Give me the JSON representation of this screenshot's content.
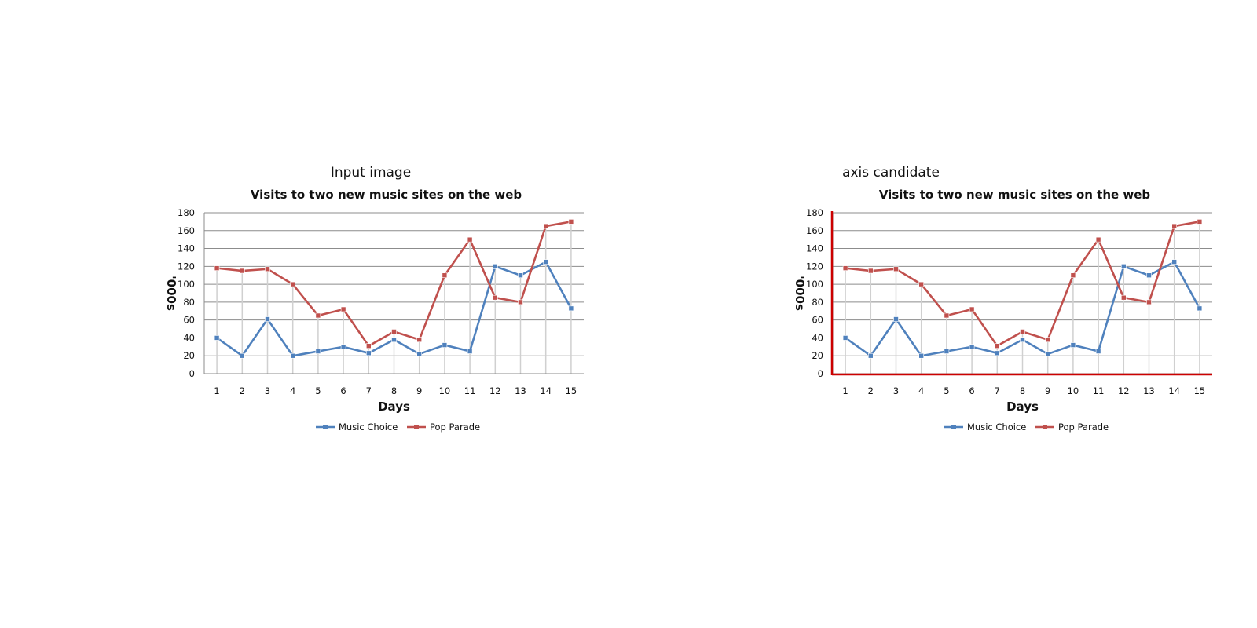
{
  "panels": [
    {
      "caption": "Input image",
      "highlight_axes": false,
      "highlight_color": ""
    },
    {
      "caption": "axis candidate",
      "highlight_axes": true,
      "highlight_color": "#cc0000"
    }
  ],
  "chart_data": {
    "type": "line",
    "title": "Visits to two new music sites on the web",
    "xlabel": "Days",
    "ylabel": "'000s",
    "categories": [
      "1",
      "2",
      "3",
      "4",
      "5",
      "6",
      "7",
      "8",
      "9",
      "10",
      "11",
      "12",
      "13",
      "14",
      "15"
    ],
    "ylim": [
      0,
      180
    ],
    "yticks": [
      0,
      20,
      40,
      60,
      80,
      100,
      120,
      140,
      160,
      180
    ],
    "grid": true,
    "legend_position": "bottom",
    "series": [
      {
        "name": "Music Choice",
        "color": "#4f81bd",
        "values": [
          40,
          20,
          61,
          20,
          25,
          30,
          23,
          38,
          22,
          32,
          25,
          120,
          110,
          125,
          73
        ]
      },
      {
        "name": "Pop Parade",
        "color": "#c0504d",
        "values": [
          118,
          115,
          117,
          100,
          65,
          72,
          31,
          47,
          38,
          110,
          150,
          85,
          80,
          165,
          170
        ]
      }
    ]
  }
}
